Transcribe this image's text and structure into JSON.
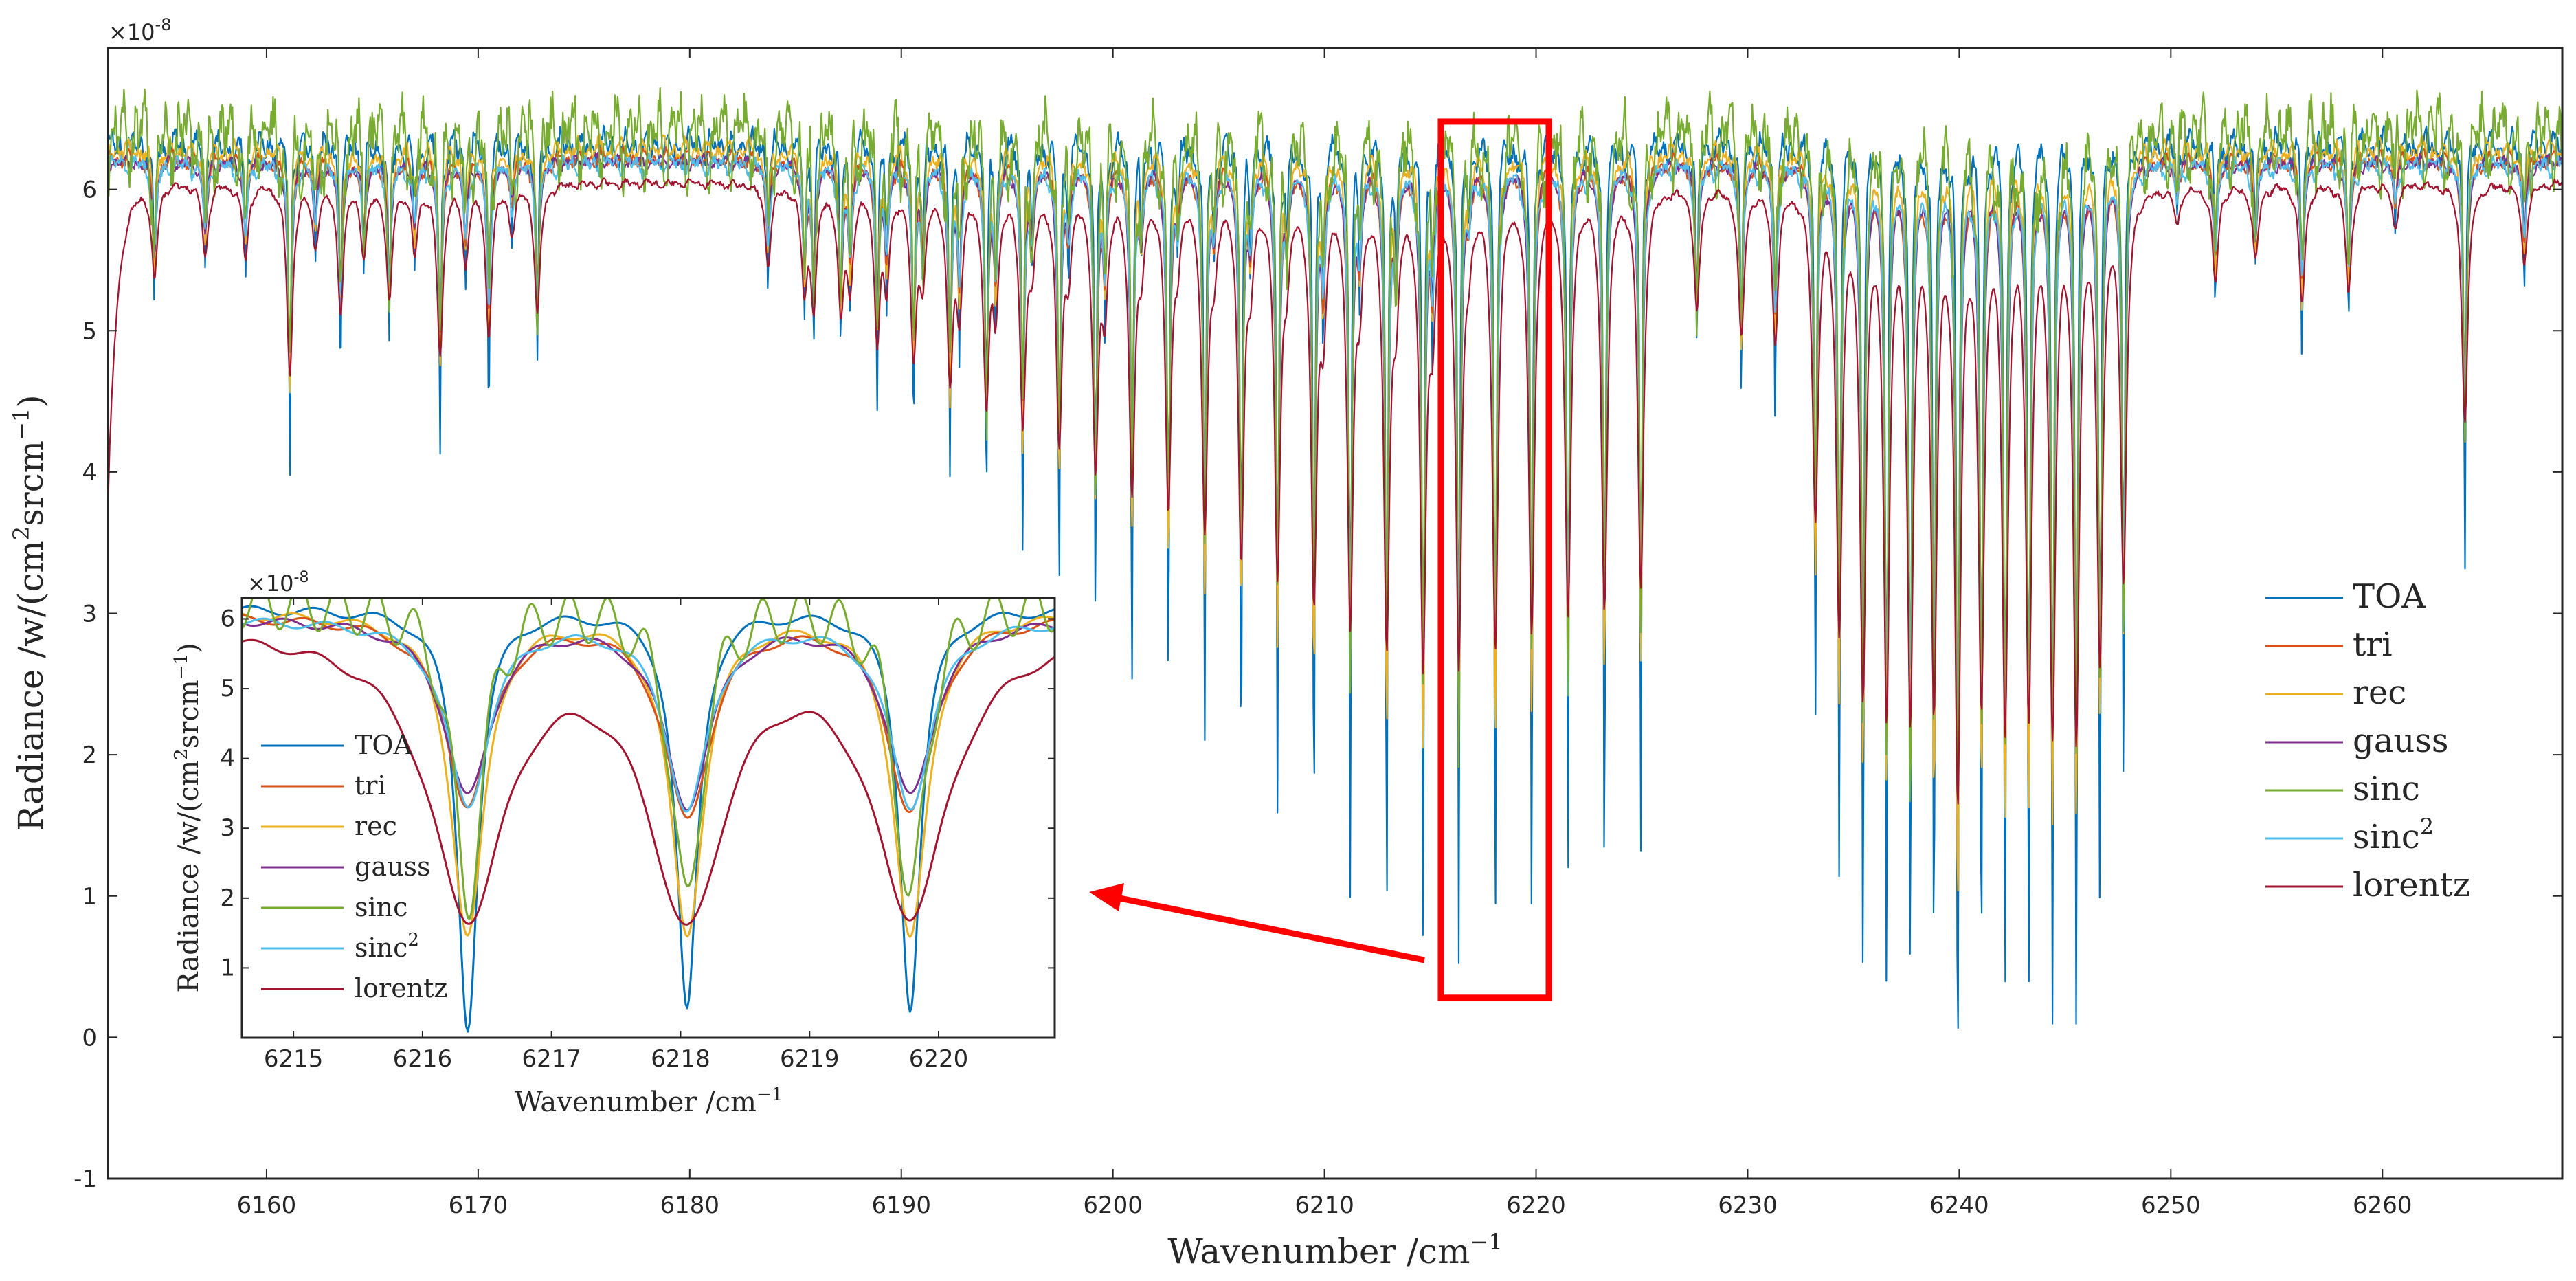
{
  "chart_data": [
    {
      "id": "main",
      "type": "line",
      "title": "",
      "xlabel": "Wavenumber /cm",
      "xlabel_sup": "−1",
      "ylabel": "Radiance /w/(cm",
      "ylabel_sup1": "2",
      "ylabel_mid": "srcm",
      "ylabel_sup2": "−1",
      "ylabel_end": ")",
      "exponent_label": "×10",
      "exponent_power": "-8",
      "xlim": [
        6152.5,
        6268.5
      ],
      "ylim": [
        -1,
        7
      ],
      "xticks": [
        6160,
        6170,
        6180,
        6190,
        6200,
        6210,
        6220,
        6230,
        6240,
        6250,
        6260
      ],
      "yticks": [
        -1,
        0,
        1,
        2,
        3,
        4,
        5,
        6
      ],
      "ytick_labels": [
        "-1",
        "0",
        "1",
        "2",
        "3",
        "4",
        "5",
        "6"
      ],
      "grid": false,
      "legend_position": "right",
      "annotation": {
        "highlight_box_x": [
          6215.5,
          6220.6
        ],
        "highlight_box_y": [
          0.28,
          6.48
        ],
        "color": "#ff0000"
      }
    },
    {
      "id": "inset",
      "type": "line",
      "title": "",
      "xlabel": "Wavenumber /cm",
      "xlabel_sup": "−1",
      "ylabel": "Radiance /w/(cm",
      "ylabel_sup1": "2",
      "ylabel_mid": "srcm",
      "ylabel_sup2": "−1",
      "ylabel_end": ")",
      "exponent_label": "×10",
      "exponent_power": "-8",
      "xlim": [
        6214.6,
        6220.9
      ],
      "ylim": [
        0,
        6.3
      ],
      "xticks": [
        6215,
        6216,
        6217,
        6218,
        6219,
        6220
      ],
      "yticks": [
        1,
        2,
        3,
        4,
        5,
        6
      ],
      "ytick_labels": [
        "1",
        "2",
        "3",
        "4",
        "5",
        "6"
      ],
      "grid": false,
      "legend_position": "left",
      "line_centers": [
        6216.35,
        6218.05,
        6219.78
      ],
      "series": [
        {
          "name": "TOA",
          "color": "#0072bd",
          "line_min": [
            0.17,
            0.4,
            0.45
          ]
        },
        {
          "name": "tri",
          "color": "#d95319",
          "line_min": [
            3.4,
            3.2,
            3.3
          ]
        },
        {
          "name": "rec",
          "color": "#edb120",
          "line_min": [
            1.5,
            1.55,
            1.45
          ]
        },
        {
          "name": "gauss",
          "color": "#7e2f8e",
          "line_min": [
            3.5,
            3.4,
            3.5
          ]
        },
        {
          "name": "sinc",
          "color": "#77ac30",
          "line_min": [
            2.0,
            1.9,
            1.95
          ]
        },
        {
          "name": "sinc",
          "sup": "2",
          "color": "#4dbeee",
          "line_min": [
            3.35,
            3.3,
            3.35
          ]
        },
        {
          "name": "lorentz",
          "color": "#a2142f",
          "line_min": [
            1.9,
            1.9,
            1.95
          ]
        }
      ]
    }
  ],
  "legend": [
    {
      "label": "TOA",
      "sup": "",
      "color": "#0072bd"
    },
    {
      "label": "tri",
      "sup": "",
      "color": "#d95319"
    },
    {
      "label": "rec",
      "sup": "",
      "color": "#edb120"
    },
    {
      "label": "gauss",
      "sup": "",
      "color": "#7e2f8e"
    },
    {
      "label": "sinc",
      "sup": "",
      "color": "#77ac30"
    },
    {
      "label": "sinc",
      "sup": "2",
      "color": "#4dbeee"
    },
    {
      "label": "lorentz",
      "sup": "",
      "color": "#a2142f"
    }
  ],
  "colors": {
    "axis": "#262626",
    "annotation": "#ff0000"
  }
}
